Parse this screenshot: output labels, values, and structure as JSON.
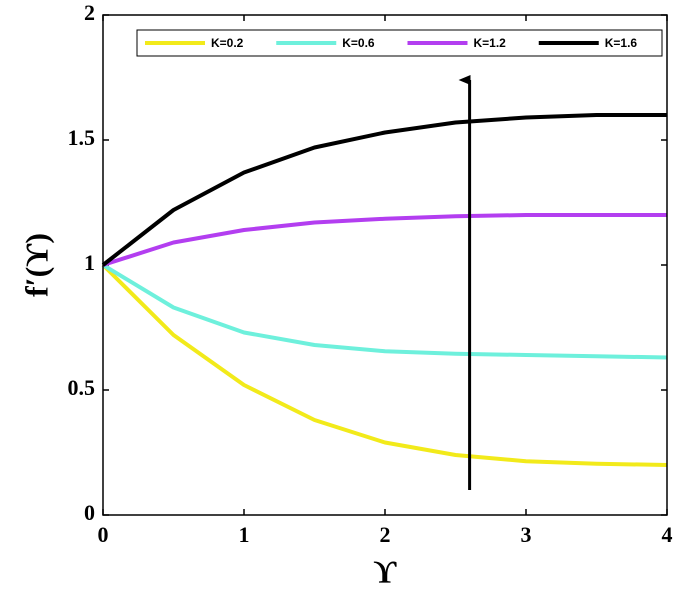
{
  "chart_data": {
    "type": "line",
    "x_label": "ϒ",
    "y_label": "f′(ϒ)",
    "x": [
      0,
      0.5,
      1,
      1.5,
      2,
      2.5,
      3,
      3.5,
      4
    ],
    "series": [
      {
        "name": "K=0.2",
        "color": "#f2ea1a",
        "values": [
          1,
          0.72,
          0.52,
          0.38,
          0.29,
          0.24,
          0.215,
          0.205,
          0.2
        ]
      },
      {
        "name": "K=0.6",
        "color": "#6ef0dc",
        "values": [
          1,
          0.83,
          0.73,
          0.68,
          0.655,
          0.645,
          0.64,
          0.635,
          0.63
        ]
      },
      {
        "name": "K=1.2",
        "color": "#b33ef0",
        "values": [
          1,
          1.09,
          1.14,
          1.17,
          1.185,
          1.195,
          1.2,
          1.2,
          1.2
        ]
      },
      {
        "name": "K=1.6",
        "color": "#000000",
        "values": [
          1,
          1.22,
          1.37,
          1.47,
          1.53,
          1.57,
          1.59,
          1.6,
          1.6
        ]
      }
    ],
    "xlim": [
      0,
      4
    ],
    "ylim": [
      0,
      2
    ],
    "xticks": [
      0,
      1,
      2,
      3,
      4
    ],
    "yticks": [
      0,
      0.5,
      1,
      1.5,
      2
    ],
    "legend": "top-right"
  }
}
